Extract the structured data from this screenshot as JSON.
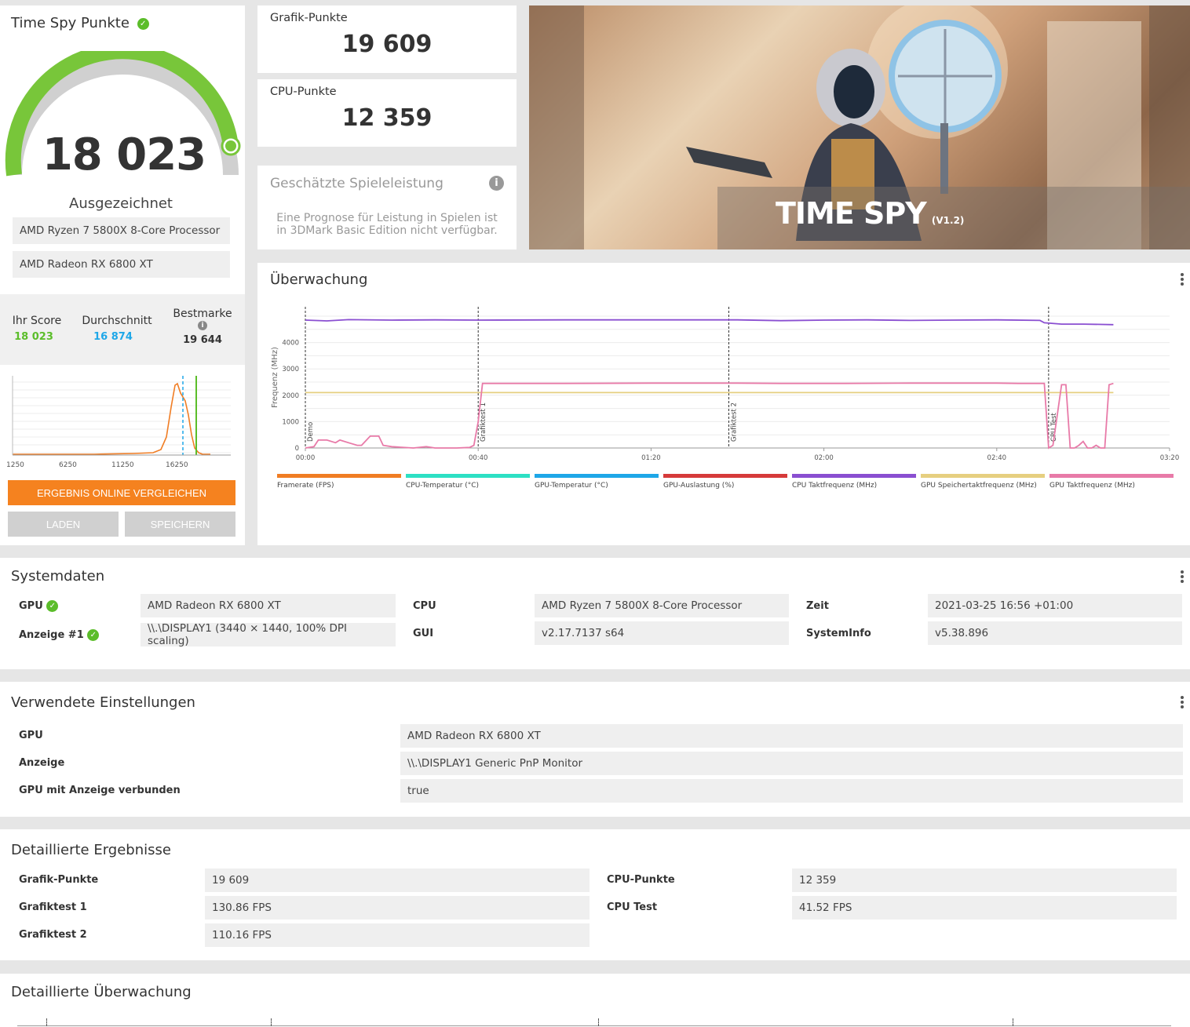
{
  "score": {
    "title": "Time Spy Punkte",
    "value": "18 023",
    "rating": "Ausgezeichnet",
    "cpu": "AMD Ryzen 7 5800X 8-Core Processor",
    "gpu": "AMD Radeon RX 6800 XT",
    "your_label": "Ihr Score",
    "your_value": "18 023",
    "avg_label": "Durchschnitt",
    "avg_value": "16 874",
    "best_label": "Bestmarke",
    "best_value": "19 644",
    "dist_ticks": [
      "1250",
      "6250",
      "11250",
      "16250"
    ],
    "compare_button": "ERGEBNIS ONLINE VERGLEICHEN",
    "load_button": "LADEN",
    "save_button": "SPEICHERN"
  },
  "subscores": {
    "graphics_label": "Grafik-Punkte",
    "graphics_value": "19 609",
    "cpu_label": "CPU-Punkte",
    "cpu_value": "12 359"
  },
  "estimate": {
    "title": "Geschätzte Spieleleistung",
    "line1": "Eine Prognose für Leistung in Spielen ist",
    "line2": "in 3DMark Basic Edition nicht verfügbar."
  },
  "banner": {
    "title": "TIME SPY",
    "version": "(V1.2)"
  },
  "monitoring": {
    "title": "Überwachung",
    "ylabel": "Frequenz (MHz)",
    "yticks": [
      "0",
      "1000",
      "2000",
      "3000",
      "4000"
    ],
    "xticks": [
      "00:00",
      "00:40",
      "01:20",
      "02:00",
      "02:40",
      "03:20"
    ],
    "markers": [
      "Demo",
      "Grafiktest 1",
      "Grafiktest 2",
      "CPU Test"
    ],
    "legend": [
      {
        "label": "Framerate (FPS)",
        "color": "#f07d24"
      },
      {
        "label": "CPU-Temperatur (°C)",
        "color": "#2de0c4"
      },
      {
        "label": "GPU-Temperatur (°C)",
        "color": "#1ea7e8"
      },
      {
        "label": "GPU-Auslastung (%)",
        "color": "#d63a3a"
      },
      {
        "label": "CPU Taktfrequenz (MHz)",
        "color": "#8a4fd1"
      },
      {
        "label": "GPU Speichertaktfrequenz (MHz)",
        "color": "#e6cf80"
      },
      {
        "label": "GPU Taktfrequenz (MHz)",
        "color": "#e87aa8"
      }
    ]
  },
  "chart_data": {
    "type": "line",
    "title": "Überwachung",
    "xlabel": "",
    "ylabel": "Frequenz (MHz)",
    "xlim": [
      0,
      200
    ],
    "ylim": [
      0,
      5000
    ],
    "x_unit": "seconds",
    "series": [
      {
        "name": "CPU Taktfrequenz (MHz)",
        "color": "#8a4fd1",
        "x": [
          0,
          5,
          10,
          20,
          30,
          40,
          60,
          80,
          100,
          110,
          120,
          130,
          140,
          150,
          160,
          170,
          171,
          175,
          180,
          187
        ],
        "y": [
          4850,
          4820,
          4870,
          4850,
          4860,
          4850,
          4860,
          4860,
          4860,
          4830,
          4850,
          4860,
          4840,
          4850,
          4860,
          4840,
          4750,
          4700,
          4700,
          4680
        ]
      },
      {
        "name": "GPU Speichertaktfrequenz (MHz)",
        "color": "#e6cf80",
        "x": [
          0,
          40,
          80,
          120,
          160,
          187
        ],
        "y": [
          2100,
          2100,
          2100,
          2100,
          2100,
          2100
        ]
      },
      {
        "name": "GPU Taktfrequenz (MHz)",
        "color": "#e87aa8",
        "x": [
          0,
          2,
          3,
          5,
          7,
          8,
          10,
          12,
          13,
          15,
          17,
          18,
          20,
          25,
          28,
          30,
          35,
          38,
          39,
          40,
          41,
          60,
          80,
          100,
          110,
          125,
          140,
          160,
          165,
          171,
          172,
          173,
          175,
          176,
          177,
          178,
          179,
          180,
          181,
          182,
          183,
          184,
          185,
          186,
          187
        ],
        "y": [
          0,
          50,
          300,
          300,
          200,
          300,
          200,
          100,
          100,
          450,
          450,
          100,
          50,
          0,
          50,
          0,
          0,
          20,
          100,
          1000,
          2450,
          2450,
          2460,
          2460,
          2450,
          2450,
          2460,
          2460,
          2450,
          2450,
          0,
          100,
          2400,
          2400,
          0,
          0,
          100,
          250,
          0,
          0,
          100,
          0,
          0,
          2400,
          2450
        ]
      },
      {
        "name": "Framerate (FPS)",
        "color": "#f07d24",
        "x": [],
        "y": []
      },
      {
        "name": "CPU-Temperatur (°C)",
        "color": "#2de0c4",
        "x": [],
        "y": []
      },
      {
        "name": "GPU-Temperatur (°C)",
        "color": "#1ea7e8",
        "x": [],
        "y": []
      },
      {
        "name": "GPU-Auslastung (%)",
        "color": "#d63a3a",
        "x": [],
        "y": []
      }
    ],
    "markers": [
      {
        "x": 0,
        "label": "Demo"
      },
      {
        "x": 40,
        "label": "Grafiktest 1"
      },
      {
        "x": 98,
        "label": "Grafiktest 2"
      },
      {
        "x": 172,
        "label": "CPU Test"
      }
    ],
    "grid": true
  },
  "sysinfo": {
    "title": "Systemdaten",
    "rows": [
      {
        "label": "GPU",
        "value": "AMD Radeon RX 6800 XT"
      },
      {
        "label": "Anzeige #1",
        "value": "\\\\.\\DISPLAY1 (3440 × 1440, 100% DPI scaling)"
      },
      {
        "label": "CPU",
        "value": "AMD Ryzen 7 5800X 8-Core Processor"
      },
      {
        "label": "GUI",
        "value": "v2.17.7137 s64"
      },
      {
        "label": "Zeit",
        "value": "2021-03-25 16:56 +01:00"
      },
      {
        "label": "SystemInfo",
        "value": "v5.38.896"
      }
    ]
  },
  "settings": {
    "title": "Verwendete Einstellungen",
    "rows": [
      {
        "label": "GPU",
        "value": "AMD Radeon RX 6800 XT"
      },
      {
        "label": "Anzeige",
        "value": "\\\\.\\DISPLAY1 Generic PnP Monitor"
      },
      {
        "label": "GPU mit Anzeige verbunden",
        "value": "true"
      }
    ]
  },
  "details": {
    "title": "Detaillierte Ergebnisse",
    "rows": [
      {
        "label": "Grafik-Punkte",
        "value": "19 609"
      },
      {
        "label": "Grafiktest 1",
        "value": "130.86 FPS"
      },
      {
        "label": "Grafiktest 2",
        "value": "110.16 FPS"
      },
      {
        "label": "CPU-Punkte",
        "value": "12 359"
      },
      {
        "label": "CPU Test",
        "value": "41.52 FPS"
      }
    ]
  },
  "detail_monitoring": {
    "title": "Detaillierte Überwachung"
  },
  "colors": {
    "accent_green": "#5bbd2a",
    "accent_orange": "#f5821f",
    "average_blue": "#1ea7e8"
  }
}
